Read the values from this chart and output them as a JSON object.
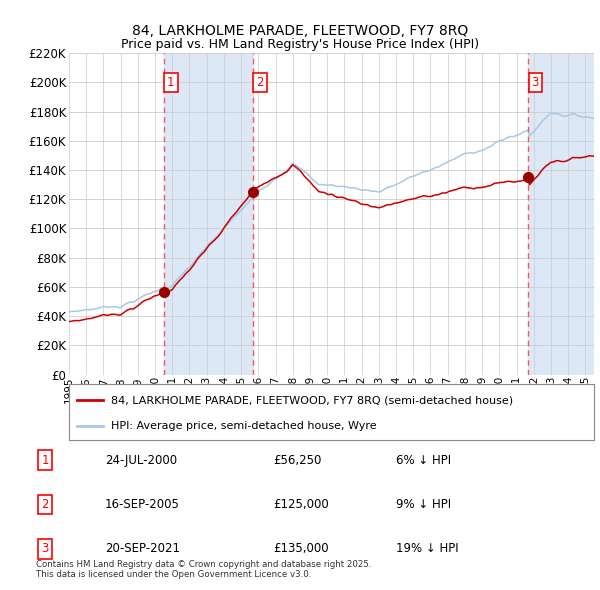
{
  "title_line1": "84, LARKHOLME PARADE, FLEETWOOD, FY7 8RQ",
  "title_line2": "Price paid vs. HM Land Registry's House Price Index (HPI)",
  "legend_label_red": "84, LARKHOLME PARADE, FLEETWOOD, FY7 8RQ (semi-detached house)",
  "legend_label_blue": "HPI: Average price, semi-detached house, Wyre",
  "transactions": [
    {
      "num": 1,
      "date": "24-JUL-2000",
      "price": 56250,
      "pct": "6%",
      "dir": "↓"
    },
    {
      "num": 2,
      "date": "16-SEP-2005",
      "price": 125000,
      "pct": "9%",
      "dir": "↓"
    },
    {
      "num": 3,
      "date": "20-SEP-2021",
      "price": 135000,
      "pct": "19%",
      "dir": "↓"
    }
  ],
  "footnote": "Contains HM Land Registry data © Crown copyright and database right 2025.\nThis data is licensed under the Open Government Licence v3.0.",
  "year_start": 1995,
  "year_end": 2025,
  "ylim_min": 0,
  "ylim_max": 220000,
  "ytick_step": 20000,
  "hpi_color": "#a8c8e8",
  "price_color": "#cc0000",
  "span_color": "#dce8f5",
  "vline_color": "#ff5555",
  "grid_color": "#cccccc",
  "dot_color": "#990000",
  "title_fontsize": 10,
  "subtitle_fontsize": 9
}
